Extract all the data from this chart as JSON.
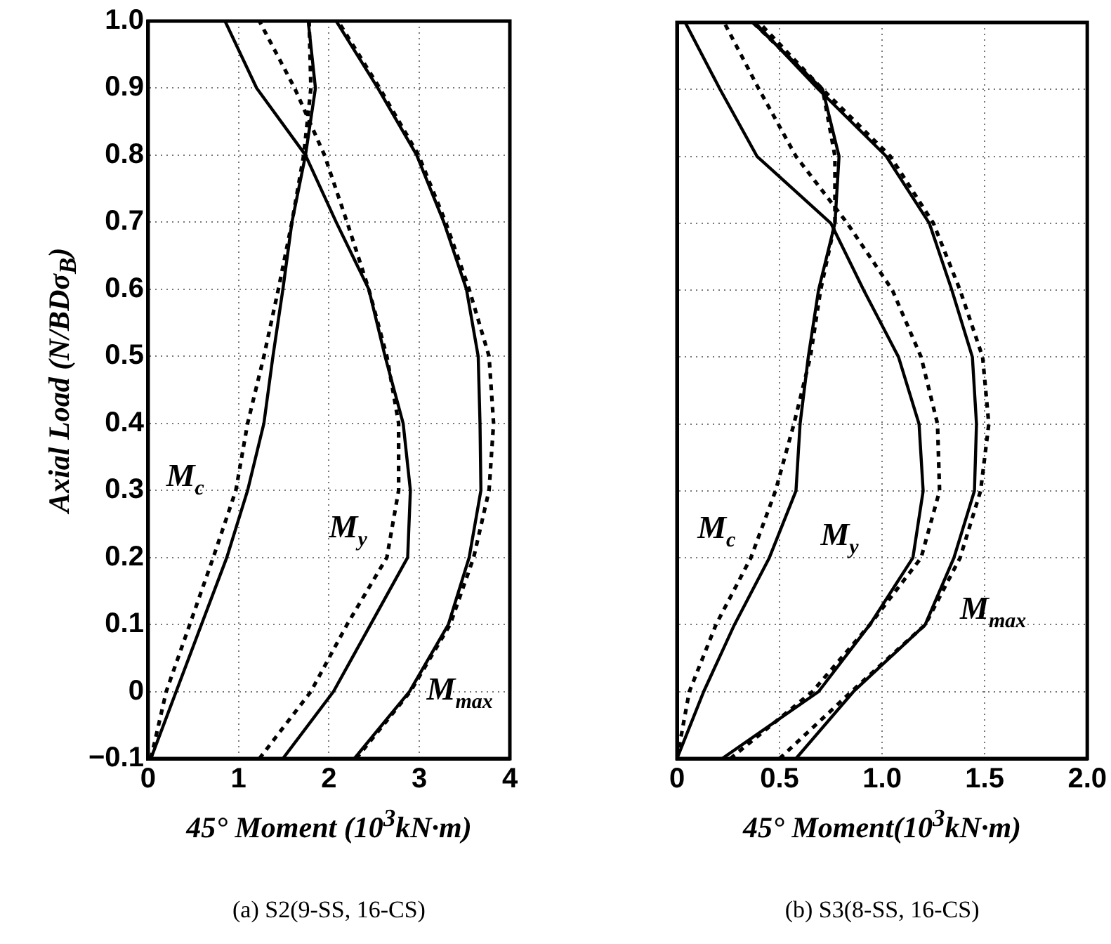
{
  "chart_data": [
    {
      "type": "line",
      "title": "(a) S2(9-SS, 16-CS)",
      "xlabel": "45° Moment (10$^{3}$kN·m)",
      "ylabel": "Axial Load (N/BDσ$_{B}$)",
      "xlim": [
        0,
        4
      ],
      "xticks": [
        0,
        1,
        2,
        3,
        4
      ],
      "ylim": [
        -0.1,
        1.0
      ],
      "yticks": [
        {
          "value": -0.1,
          "label": "−0.1"
        },
        {
          "value": 0,
          "label": "0"
        },
        {
          "value": 0.1,
          "label": "0.1"
        },
        {
          "value": 0.2,
          "label": "0.2"
        },
        {
          "value": 0.3,
          "label": "0.3"
        },
        {
          "value": 0.4,
          "label": "0.4"
        },
        {
          "value": 0.5,
          "label": "0.5"
        },
        {
          "value": 0.6,
          "label": "0.6"
        },
        {
          "value": 0.7,
          "label": "0.7"
        },
        {
          "value": 0.8,
          "label": "0.8"
        },
        {
          "value": 0.9,
          "label": "0.9"
        },
        {
          "value": 1.0,
          "label": "1.0"
        }
      ],
      "grid": true,
      "legend": false,
      "marker": "none",
      "series": [
        {
          "color": "#000000",
          "line_style": "solid",
          "x": [
            0.03,
            0.31,
            0.59,
            0.87,
            1.1,
            1.28,
            1.38,
            1.49,
            1.59,
            1.74,
            1.85,
            1.77
          ],
          "values": [
            -0.1,
            0,
            0.1,
            0.2,
            0.3,
            0.4,
            0.5,
            0.6,
            0.7,
            0.8,
            0.9,
            1.0
          ]
        },
        {
          "color": "#000000",
          "line_style": "dashed",
          "x": [
            0.03,
            0.2,
            0.46,
            0.72,
            0.97,
            1.1,
            1.28,
            1.44,
            1.59,
            1.72,
            1.8,
            1.78
          ],
          "values": [
            -0.1,
            0,
            0.1,
            0.2,
            0.3,
            0.4,
            0.5,
            0.6,
            0.7,
            0.8,
            0.9,
            1.0
          ]
        },
        {
          "color": "#000000",
          "line_style": "solid",
          "x": [
            1.49,
            2.05,
            2.46,
            2.87,
            2.9,
            2.82,
            2.62,
            2.44,
            2.08,
            1.74,
            1.2,
            0.85
          ],
          "values": [
            -0.1,
            0,
            0.1,
            0.2,
            0.3,
            0.4,
            0.5,
            0.6,
            0.7,
            0.8,
            0.9,
            1.0
          ]
        },
        {
          "color": "#000000",
          "line_style": "dashed",
          "x": [
            1.23,
            1.8,
            2.2,
            2.64,
            2.77,
            2.77,
            2.64,
            2.44,
            2.2,
            1.95,
            1.62,
            1.23
          ],
          "values": [
            -0.1,
            0,
            0.1,
            0.2,
            0.3,
            0.4,
            0.5,
            0.6,
            0.7,
            0.8,
            0.9,
            1.0
          ]
        },
        {
          "color": "#000000",
          "line_style": "solid",
          "x": [
            2.28,
            2.89,
            3.32,
            3.55,
            3.68,
            3.67,
            3.65,
            3.52,
            3.27,
            2.97,
            2.54,
            2.08
          ],
          "values": [
            -0.1,
            0,
            0.1,
            0.2,
            0.3,
            0.4,
            0.5,
            0.6,
            0.7,
            0.8,
            0.9,
            1.0
          ]
        },
        {
          "color": "#000000",
          "line_style": "dashed",
          "x": [
            2.3,
            2.9,
            3.34,
            3.6,
            3.77,
            3.82,
            3.77,
            3.55,
            3.29,
            2.99,
            2.56,
            2.1
          ],
          "values": [
            -0.1,
            0,
            0.1,
            0.2,
            0.3,
            0.4,
            0.5,
            0.6,
            0.7,
            0.8,
            0.9,
            1.0
          ]
        }
      ],
      "annotations": [
        "M$_{c}$",
        "M$_{y}$",
        "M$_{max}$"
      ]
    },
    {
      "type": "line",
      "title": "(b) S3(8-SS, 16-CS)",
      "xlabel": "45° Moment(10$^{3}$kN·m)",
      "xlim": [
        0,
        2
      ],
      "xticks": [
        {
          "value": 0,
          "label": "0"
        },
        {
          "value": 0.5,
          "label": "0.5"
        },
        {
          "value": 1,
          "label": "1.0"
        },
        {
          "value": 1.5,
          "label": "1.5"
        },
        {
          "value": 2,
          "label": "2.0"
        }
      ],
      "ylim": [
        -0.1,
        1.0
      ],
      "yticks": [
        -0.1,
        0,
        0.1,
        0.2,
        0.3,
        0.4,
        0.5,
        0.6,
        0.7,
        0.8,
        0.9,
        1.0
      ],
      "tick_labels": "x",
      "grid": true,
      "legend": false,
      "marker": "none",
      "series": [
        {
          "color": "#000000",
          "line_style": "solid",
          "x": [
            0,
            0.13,
            0.28,
            0.45,
            0.58,
            0.6,
            0.64,
            0.69,
            0.77,
            0.79,
            0.71,
            0.37
          ],
          "values": [
            -0.1,
            0,
            0.1,
            0.2,
            0.3,
            0.4,
            0.5,
            0.6,
            0.7,
            0.8,
            0.9,
            1.0
          ]
        },
        {
          "color": "#000000",
          "line_style": "dashed",
          "x": [
            0,
            0.06,
            0.19,
            0.36,
            0.48,
            0.57,
            0.65,
            0.7,
            0.77,
            0.77,
            0.71,
            0.37
          ],
          "values": [
            -0.1,
            0,
            0.1,
            0.2,
            0.3,
            0.4,
            0.5,
            0.6,
            0.7,
            0.8,
            0.9,
            1.0
          ]
        },
        {
          "color": "#000000",
          "line_style": "solid",
          "x": [
            0.22,
            0.69,
            0.94,
            1.15,
            1.2,
            1.18,
            1.08,
            0.91,
            0.75,
            0.39,
            0.21,
            0.04
          ],
          "values": [
            -0.1,
            0,
            0.1,
            0.2,
            0.3,
            0.4,
            0.5,
            0.6,
            0.7,
            0.8,
            0.9,
            1.0
          ]
        },
        {
          "color": "#000000",
          "line_style": "dashed",
          "x": [
            0.26,
            0.66,
            0.94,
            1.19,
            1.28,
            1.27,
            1.19,
            1.05,
            0.83,
            0.58,
            0.4,
            0.23
          ],
          "values": [
            -0.1,
            0,
            0.1,
            0.2,
            0.3,
            0.4,
            0.5,
            0.6,
            0.7,
            0.8,
            0.9,
            1.0
          ]
        },
        {
          "color": "#000000",
          "line_style": "solid",
          "x": [
            0.58,
            0.86,
            1.21,
            1.35,
            1.45,
            1.46,
            1.44,
            1.34,
            1.23,
            1.02,
            0.69,
            0.38
          ],
          "values": [
            -0.1,
            0,
            0.1,
            0.2,
            0.3,
            0.4,
            0.5,
            0.6,
            0.7,
            0.8,
            0.9,
            1.0
          ]
        },
        {
          "color": "#000000",
          "line_style": "dashed",
          "x": [
            0.5,
            0.85,
            1.21,
            1.38,
            1.48,
            1.52,
            1.49,
            1.38,
            1.25,
            1.04,
            0.71,
            0.4
          ],
          "values": [
            -0.1,
            0,
            0.1,
            0.2,
            0.3,
            0.4,
            0.5,
            0.6,
            0.7,
            0.8,
            0.9,
            1.0
          ]
        }
      ],
      "annotations": [
        "M$_{c}$",
        "M$_{y}$",
        "M$_{max}$"
      ]
    }
  ]
}
